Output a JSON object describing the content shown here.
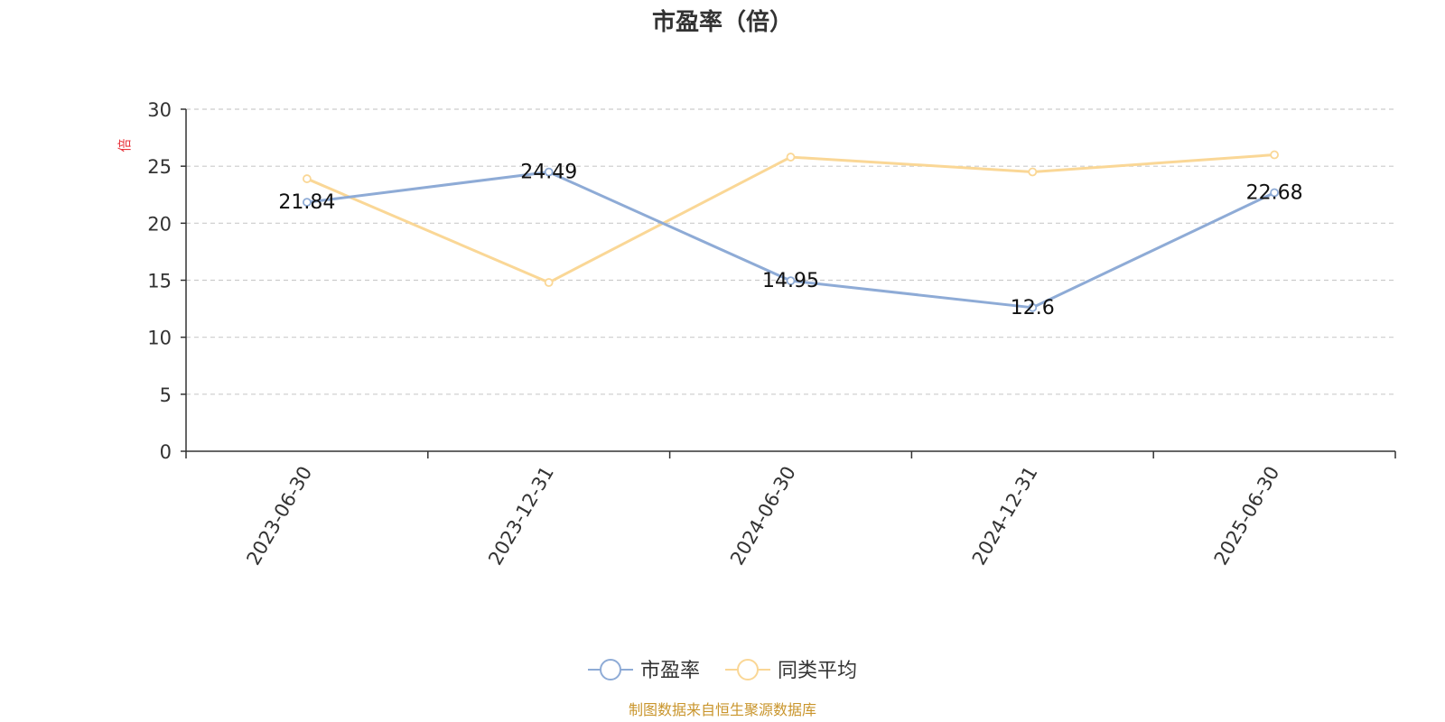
{
  "chart_data": {
    "type": "line",
    "title": "市盈率（倍）",
    "ylabel": "倍",
    "categories": [
      "2023-06-30",
      "2023-12-31",
      "2024-06-30",
      "2024-12-31",
      "2025-06-30"
    ],
    "series": [
      {
        "name": "市盈率",
        "values": [
          21.84,
          24.49,
          14.95,
          12.6,
          22.68
        ],
        "labels": [
          "21.84",
          "24.49",
          "14.95",
          "12.6",
          "22.68"
        ],
        "color": "#8eabd6"
      },
      {
        "name": "同类平均",
        "values": [
          23.9,
          14.8,
          25.8,
          24.5,
          26.0
        ],
        "color": "#fad796"
      }
    ],
    "ylim": [
      0,
      30
    ],
    "yticks": [
      "0",
      "5",
      "10",
      "15",
      "20",
      "25",
      "30"
    ],
    "grid": true,
    "legend_position": "bottom-center"
  },
  "source": "制图数据来自恒生聚源数据库",
  "colors": {
    "axis": "#333333",
    "grid": "#cccccc"
  }
}
